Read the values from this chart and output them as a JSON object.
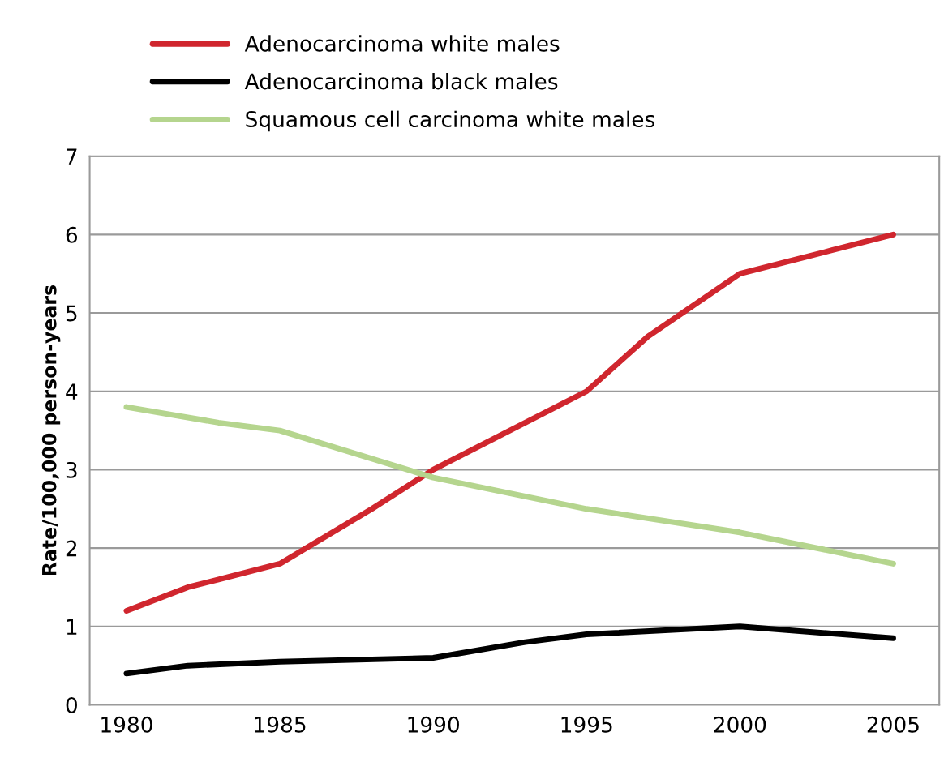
{
  "chart_data": {
    "type": "line",
    "ylabel": "Rate/100,000 person-years",
    "xlim": [
      1978.8,
      2006.5
    ],
    "xticks": [
      1980,
      1985,
      1990,
      1995,
      2000,
      2005
    ],
    "ylim": [
      0,
      7
    ],
    "yticks": [
      0,
      1,
      2,
      3,
      4,
      5,
      6,
      7
    ],
    "grid": "y",
    "legend": "top",
    "marker": "none",
    "line_style": "solid",
    "series": [
      {
        "name": "Adenocarcinoma white males",
        "color": "#d0262e",
        "x": [
          1980,
          1982,
          1983,
          1985,
          1988,
          1990,
          1995,
          1997,
          2000,
          2002,
          2003,
          2005
        ],
        "values": [
          1.2,
          1.5,
          1.6,
          1.8,
          2.5,
          3.0,
          4.0,
          4.7,
          5.5,
          5.7,
          5.8,
          6.0
        ]
      },
      {
        "name": "Adenocarcinoma black males",
        "color": "#000000",
        "x": [
          1980,
          1982,
          1985,
          1990,
          1993,
          1995,
          2000,
          2005
        ],
        "values": [
          0.4,
          0.5,
          0.55,
          0.6,
          0.8,
          0.9,
          1.0,
          0.85
        ]
      },
      {
        "name": "Squamous cell carcinoma white males",
        "color": "#b5d58e",
        "x": [
          1980,
          1983,
          1985,
          1990,
          1995,
          2000,
          2005
        ],
        "values": [
          3.8,
          3.6,
          3.5,
          2.9,
          2.5,
          2.2,
          1.8
        ]
      }
    ]
  }
}
